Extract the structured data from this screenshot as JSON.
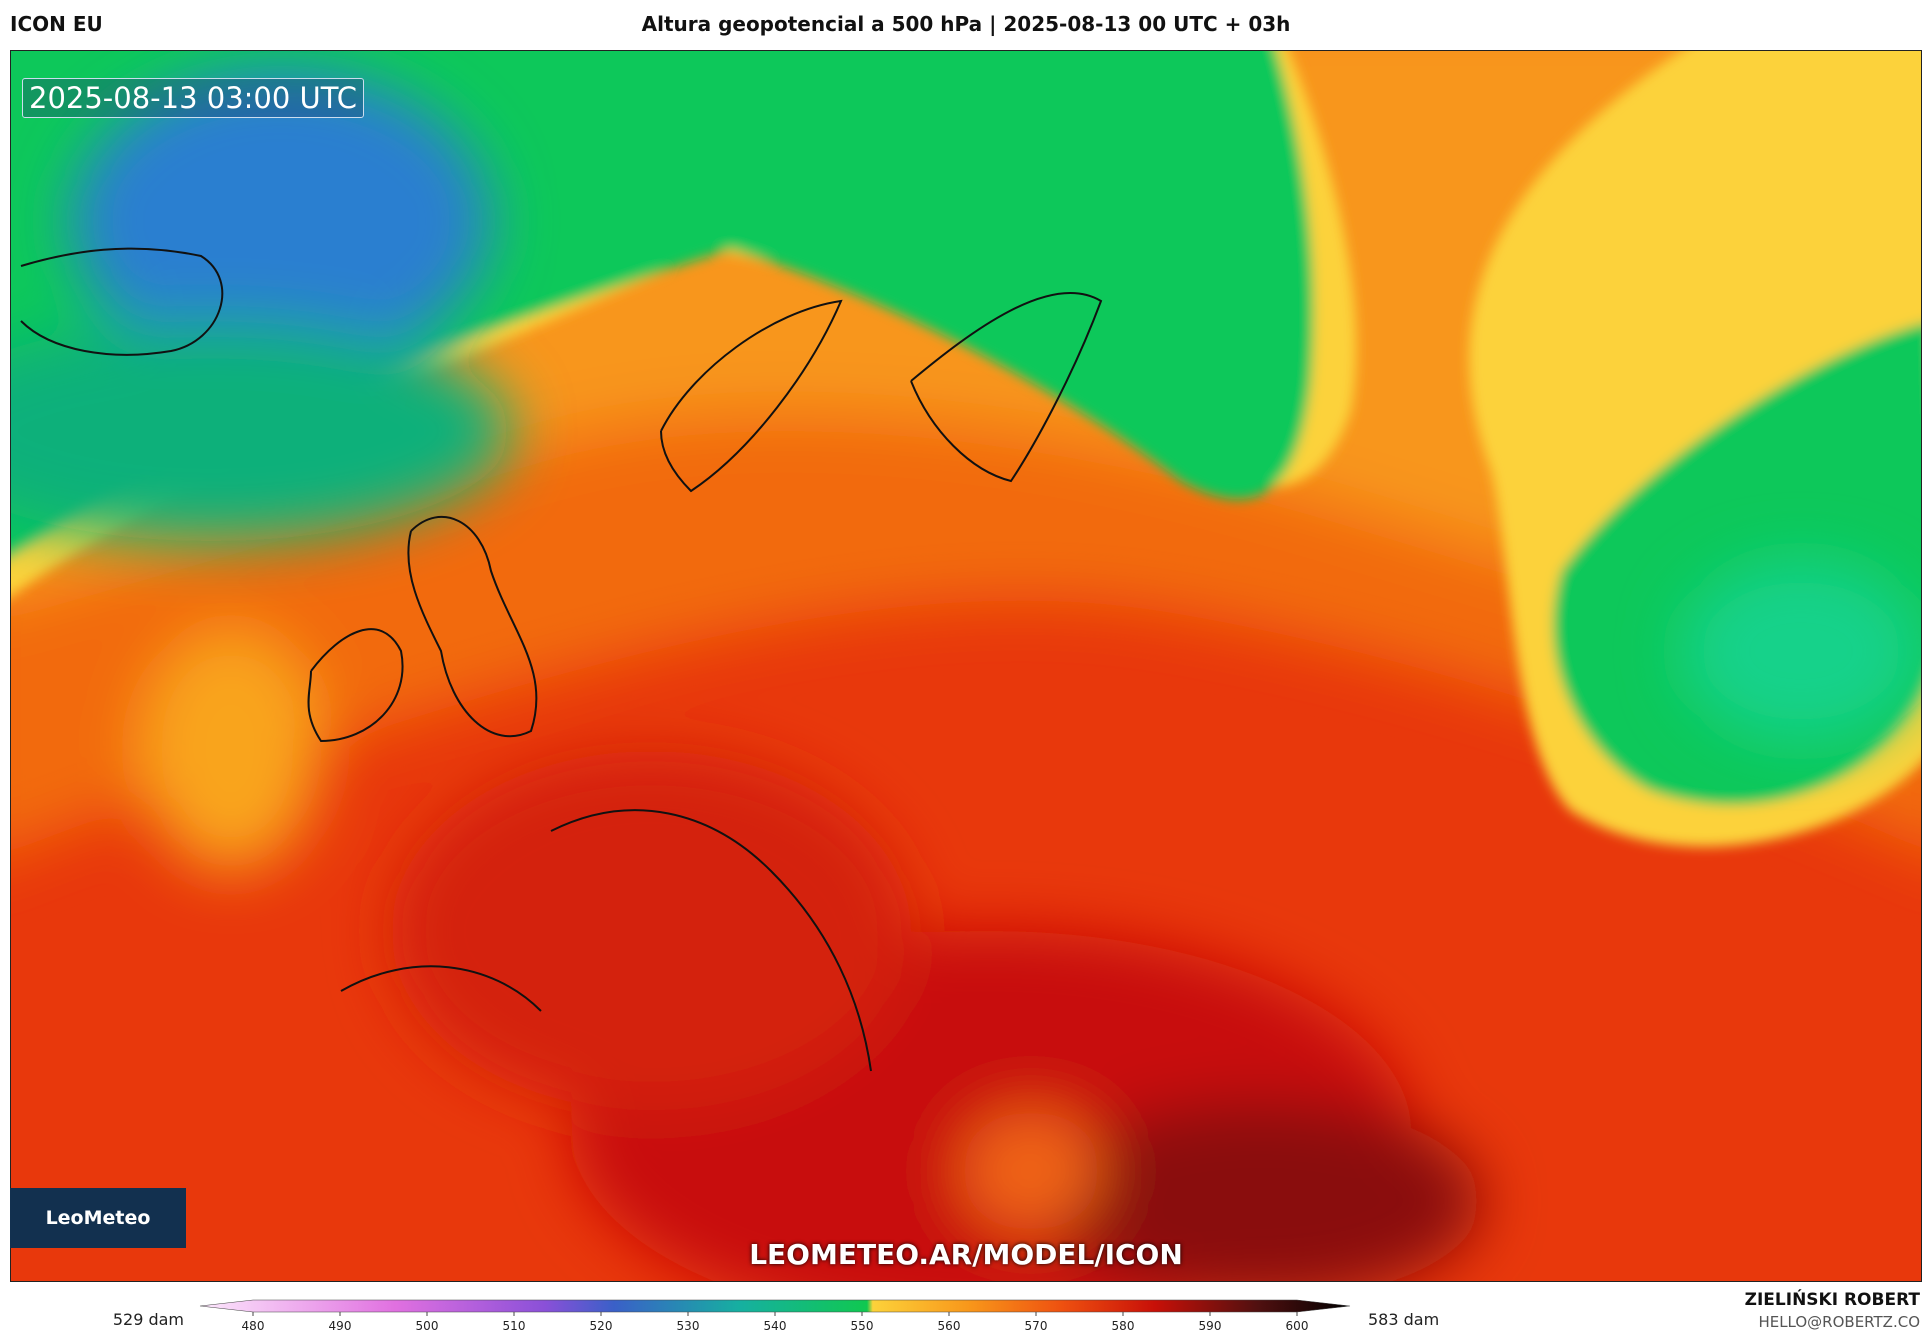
{
  "header": {
    "model": "ICON EU",
    "title": "Altura geopotencial a 500 hPa | 2025-08-13 00 UTC + 03h"
  },
  "map": {
    "timestamp": "2025-08-13 03:00 UTC",
    "watermark": "LEOMETEO.AR/MODEL/ICON",
    "logo": "LeoMeteo"
  },
  "legend": {
    "min_label": "529 dam",
    "max_label": "583 dam",
    "range": [
      480,
      600
    ],
    "ticks": [
      480,
      490,
      500,
      510,
      520,
      530,
      540,
      550,
      560,
      570,
      580,
      590,
      600
    ]
  },
  "footer": {
    "author": "ZIELIŃSKI ROBERT",
    "email": "HELLO@ROBERTZ.CO"
  }
}
